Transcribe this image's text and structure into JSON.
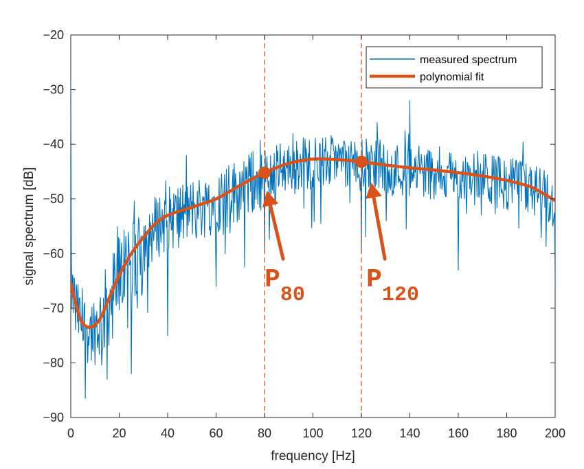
{
  "chart_data": {
    "type": "line",
    "xlabel": "frequency [Hz]",
    "ylabel": "signal spectrum [dB]",
    "xlim": [
      0,
      200
    ],
    "ylim": [
      -90,
      -20
    ],
    "xticks": [
      0,
      20,
      40,
      60,
      80,
      100,
      120,
      140,
      160,
      180,
      200
    ],
    "yticks": [
      -90,
      -80,
      -70,
      -60,
      -50,
      -40,
      -30,
      -20
    ],
    "grid": false,
    "box": true,
    "legend_position": "top-right",
    "legend": [
      "measured spectrum",
      "polynomial fit"
    ],
    "colors": {
      "measured": "#0072BD",
      "fit": "#D95319",
      "axis": "#262626"
    },
    "series": [
      {
        "name": "measured spectrum",
        "style": "thin line, high-frequency noise around the fit",
        "x_step": 0.25,
        "envelope_points": [
          {
            "x": 0,
            "y": -28
          },
          {
            "x": 2,
            "y": -74
          },
          {
            "x": 6,
            "y": -86.5
          },
          {
            "x": 15,
            "y": -83
          },
          {
            "x": 25,
            "y": -82
          },
          {
            "x": 40,
            "y": -75
          },
          {
            "x": 60,
            "y": -66
          },
          {
            "x": 80,
            "y": -60
          },
          {
            "x": 120,
            "y": -60
          },
          {
            "x": 140,
            "y": -32
          },
          {
            "x": 160,
            "y": -63
          },
          {
            "x": 200,
            "y": -65
          }
        ]
      },
      {
        "name": "polynomial fit",
        "style": "thick line",
        "x": [
          0,
          4,
          8,
          12,
          16,
          20,
          25,
          30,
          35,
          40,
          50,
          60,
          70,
          80,
          90,
          100,
          110,
          120,
          130,
          140,
          150,
          160,
          170,
          180,
          190,
          195,
          200
        ],
        "y": [
          -65.5,
          -72,
          -73.5,
          -72,
          -68,
          -64,
          -60,
          -57,
          -54.5,
          -53,
          -51.5,
          -50,
          -47.5,
          -45.2,
          -43.5,
          -42.7,
          -42.8,
          -43.2,
          -43.8,
          -44.3,
          -44.7,
          -45.2,
          -45.8,
          -46.6,
          -47.8,
          -49,
          -50.3
        ]
      }
    ],
    "reference_lines": [
      {
        "x": 80,
        "style": "dashed"
      },
      {
        "x": 120,
        "style": "dashed"
      }
    ],
    "markers": [
      {
        "x": 80,
        "y": -45.2
      },
      {
        "x": 120,
        "y": -43.2
      }
    ],
    "annotations": [
      {
        "letter": "P",
        "sub": "80",
        "x": 84,
        "y": -64.5,
        "arrow_to": {
          "x": 81,
          "y": -48.5
        }
      },
      {
        "letter": "P",
        "sub": "120",
        "x": 126,
        "y": -64.5,
        "arrow_to": {
          "x": 124,
          "y": -47
        }
      }
    ]
  }
}
